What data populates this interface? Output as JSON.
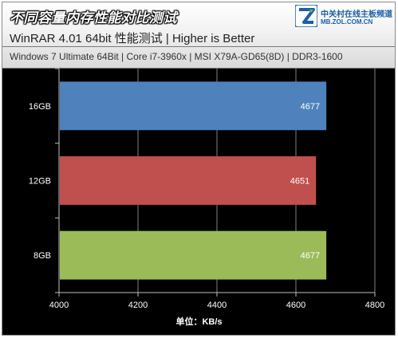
{
  "header": {
    "title": "不同容量内存性能对比测试",
    "subtitle": "WinRAR 4.01 64bit 性能测试 | Higher is Better",
    "test_config": "Windows 7 Ultimate 64Bit | Core i7-3960x | MSI X79A-GD65(8D) | DDR3-1600"
  },
  "logo": {
    "name": "中关村在线主板频道",
    "url": "MB.ZOL.COM.CN",
    "colors": {
      "blue": "#1b5fa8",
      "green": "#7dbb2c"
    }
  },
  "chart_data": {
    "type": "bar",
    "orientation": "horizontal",
    "categories": [
      "16GB",
      "12GB",
      "8GB"
    ],
    "values": [
      4677,
      4651,
      4677
    ],
    "colors": [
      "#4f81bd",
      "#c0504d",
      "#9bbb59"
    ],
    "xlabel": "单位：KB/s",
    "xlim": [
      4000,
      4800
    ],
    "xticks": [
      "4000",
      "4200",
      "4400",
      "4600",
      "4800"
    ],
    "grid": "vertical",
    "data_labels": true
  }
}
